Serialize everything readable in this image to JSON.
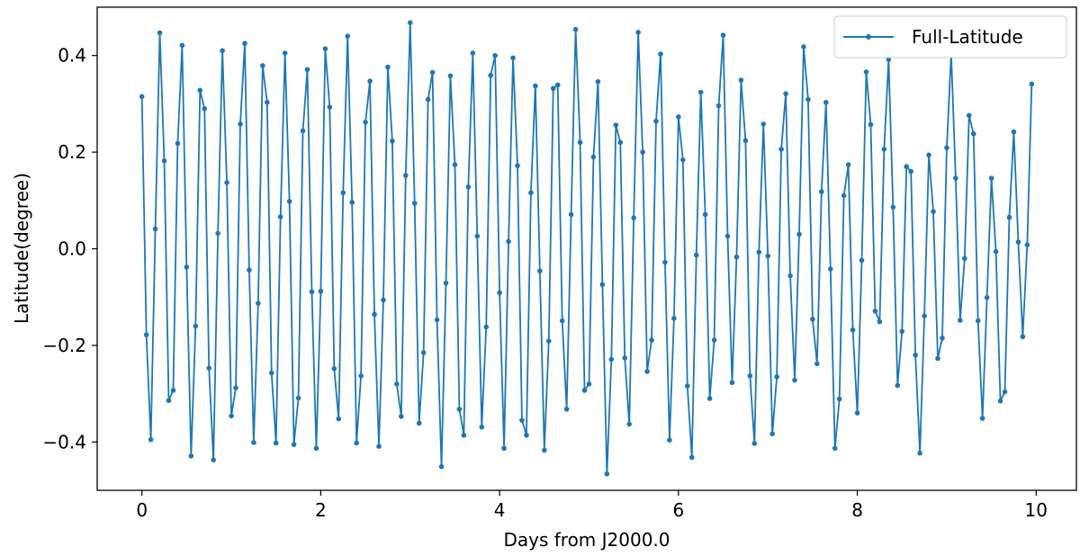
{
  "chart_data": {
    "type": "line",
    "title": "",
    "xlabel": "Days from J2000.0",
    "ylabel": "Latitude(degree)",
    "xlim": [
      -0.5,
      10.45
    ],
    "ylim": [
      -0.5,
      0.5
    ],
    "xticks": [
      0,
      2,
      4,
      6,
      8,
      10
    ],
    "xtick_labels": [
      "0",
      "2",
      "4",
      "6",
      "8",
      "10"
    ],
    "yticks": [
      -0.4,
      -0.2,
      0.0,
      0.2,
      0.4
    ],
    "ytick_labels": [
      "−0.4",
      "−0.2",
      "0.0",
      "0.2",
      "0.4"
    ],
    "grid": false,
    "legend_position": "top-right",
    "series": [
      {
        "name": "Full-Latitude",
        "color": "#1f77b4",
        "marker": "circle",
        "x_start": 0.0,
        "x_step": 0.05,
        "values": [
          0.315,
          -0.178,
          -0.395,
          0.041,
          0.447,
          0.182,
          -0.314,
          -0.293,
          0.218,
          0.421,
          -0.038,
          -0.429,
          -0.16,
          0.328,
          0.29,
          -0.247,
          -0.437,
          0.032,
          0.41,
          0.137,
          -0.346,
          -0.288,
          0.258,
          0.425,
          -0.044,
          -0.401,
          -0.113,
          0.379,
          0.303,
          -0.257,
          -0.402,
          0.066,
          0.405,
          0.098,
          -0.405,
          -0.309,
          0.244,
          0.371,
          -0.089,
          -0.413,
          -0.088,
          0.414,
          0.293,
          -0.248,
          -0.352,
          0.116,
          0.44,
          0.096,
          -0.402,
          -0.263,
          0.262,
          0.347,
          -0.136,
          -0.409,
          -0.106,
          0.376,
          0.223,
          -0.28,
          -0.347,
          0.152,
          0.468,
          0.094,
          -0.361,
          -0.215,
          0.309,
          0.365,
          -0.147,
          -0.451,
          -0.071,
          0.358,
          0.174,
          -0.332,
          -0.386,
          0.128,
          0.405,
          0.026,
          -0.369,
          -0.162,
          0.359,
          0.4,
          -0.091,
          -0.413,
          0.015,
          0.395,
          0.172,
          -0.355,
          -0.386,
          0.116,
          0.337,
          -0.046,
          -0.417,
          -0.191,
          0.332,
          0.339,
          -0.149,
          -0.332,
          0.071,
          0.454,
          0.22,
          -0.293,
          -0.28,
          0.19,
          0.346,
          -0.074,
          -0.466,
          -0.229,
          0.256,
          0.22,
          -0.226,
          -0.363,
          0.064,
          0.448,
          0.2,
          -0.254,
          -0.189,
          0.264,
          0.403,
          -0.028,
          -0.396,
          -0.144,
          0.273,
          0.184,
          -0.284,
          -0.432,
          -0.013,
          0.324,
          0.071,
          -0.31,
          -0.189,
          0.296,
          0.442,
          0.026,
          -0.277,
          -0.017,
          0.349,
          0.224,
          -0.263,
          -0.403,
          -0.007,
          0.258,
          -0.015,
          -0.383,
          -0.265,
          0.206,
          0.321,
          -0.056,
          -0.272,
          0.03,
          0.418,
          0.309,
          -0.146,
          -0.238,
          0.118,
          0.303,
          -0.042,
          -0.413,
          -0.311,
          0.11,
          0.174,
          -0.168,
          -0.34,
          -0.024,
          0.366,
          0.257,
          -0.129,
          -0.151,
          0.206,
          0.392,
          0.086,
          -0.283,
          -0.171,
          0.17,
          0.16,
          -0.22,
          -0.423,
          -0.139,
          0.194,
          0.077,
          -0.227,
          -0.185,
          0.209,
          0.404,
          0.146,
          -0.148,
          -0.02,
          0.276,
          0.238,
          -0.149,
          -0.351,
          -0.101,
          0.146,
          -0.006,
          -0.315,
          -0.296,
          0.065,
          0.242,
          0.014,
          -0.182,
          0.008,
          0.341
        ]
      }
    ]
  }
}
